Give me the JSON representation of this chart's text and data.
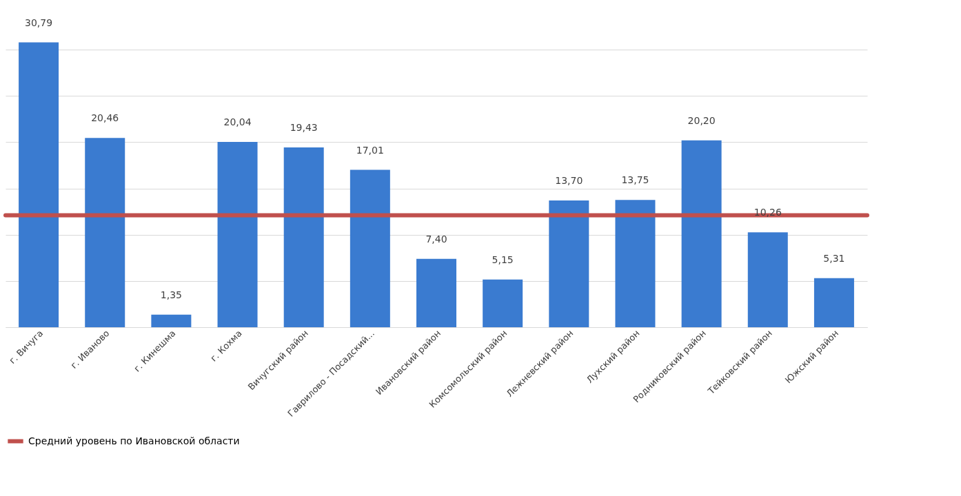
{
  "chart_data": {
    "type": "bar",
    "categories": [
      "г. Вичуга",
      "г. Иваново",
      "г. Кинешма",
      "г. Кохма",
      "Вичугский район",
      "Гаврилово - Посадский...",
      "Ивановский район",
      "Комсомольский район",
      "Лежневский район",
      "Лухский район",
      "Родниковский район",
      "Тейковский район",
      "Южский район"
    ],
    "values": [
      30.79,
      20.46,
      1.35,
      20.04,
      19.43,
      17.01,
      7.4,
      5.15,
      13.7,
      13.75,
      20.2,
      10.26,
      5.31
    ],
    "value_labels": [
      "30,79",
      "20,46",
      "1,35",
      "20,04",
      "19,43",
      "17,01",
      "7,40",
      "5,15",
      "13,70",
      "13,75",
      "20,20",
      "10,26",
      "5,31"
    ],
    "color": "#3a7bd0",
    "yticks": [
      {
        "value": 0,
        "label": null
      },
      {
        "value": 5,
        "label": null
      },
      {
        "value": 10,
        "label": null
      },
      {
        "value": 15,
        "label": null
      },
      {
        "value": 20,
        "label": null
      },
      {
        "value": 25,
        "label": null
      },
      {
        "value": 30,
        "label": null
      }
    ],
    "tick_labels": "x",
    "grid": "y",
    "legend": "bottom",
    "ref_lines": [
      {
        "axis": "y",
        "value": 12.1,
        "label": "Средний уровень по Ивановской области",
        "color": "#c0504d"
      }
    ]
  }
}
